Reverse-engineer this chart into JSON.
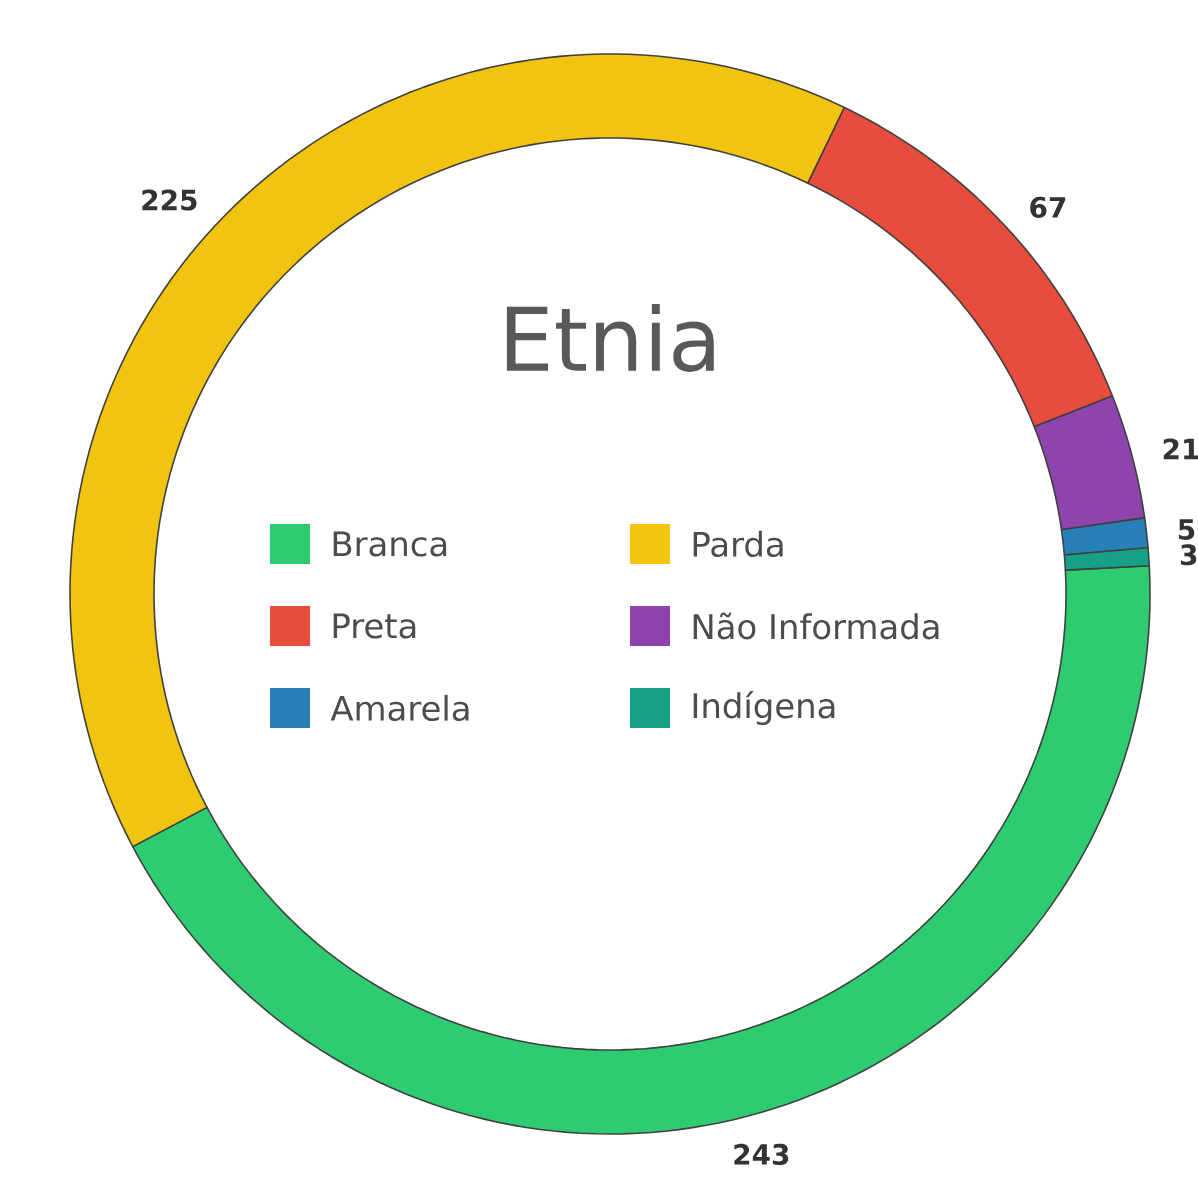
{
  "chart_data": {
    "type": "donut",
    "title": "Etnia",
    "categories": [
      "Branca",
      "Parda",
      "Preta",
      "Não Informada",
      "Amarela",
      "Indígena"
    ],
    "values": [
      243,
      225,
      67,
      21,
      5,
      3
    ],
    "colors": [
      "#2ecc71",
      "#f1c40f",
      "#e74c3c",
      "#8e44ad",
      "#2980b9",
      "#16a085"
    ],
    "data_labels": true,
    "legend": "center"
  }
}
